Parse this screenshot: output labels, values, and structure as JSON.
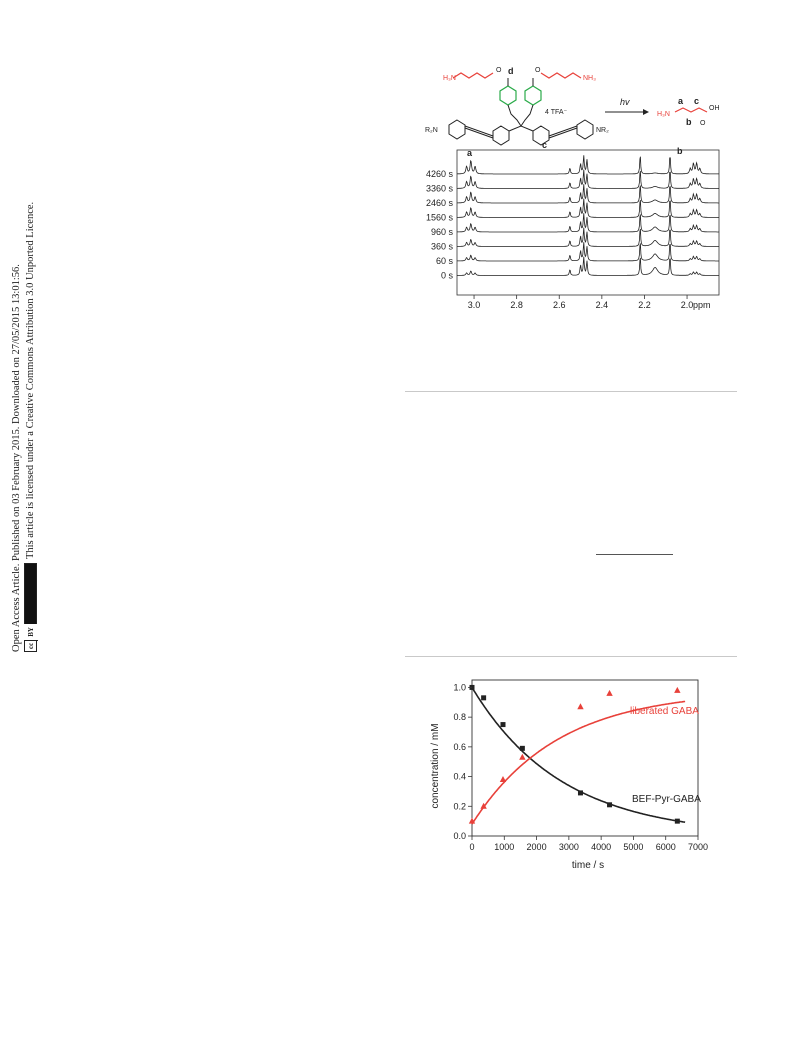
{
  "sidebar": {
    "line1": "Open Access Article. Published on 03 February 2015. Downloaded on 27/05/2015 13:01:56.",
    "line2": "This article is licensed under a Creative Commons Attribution 3.0 Unported Licence.",
    "badge_cc": "cc",
    "badge_by": "BY"
  },
  "scheme": {
    "counter_ion": "4 TFA⁻",
    "arrow_label": "hv",
    "label_a": "a",
    "label_b": "b",
    "label_c": "c",
    "label_d": "d",
    "nr2_left": "R₂N",
    "nr2_right": "NR₂",
    "oh": "OH"
  },
  "nmr": {
    "time_labels": [
      "4260 s",
      "3360 s",
      "2460 s",
      "1560 s",
      "960 s",
      "360 s",
      "60 s",
      "0 s"
    ],
    "ticks": [
      "3.0",
      "2.8",
      "2.6",
      "2.4",
      "2.2",
      "2.0"
    ],
    "unit": "ppm",
    "peak_labels": [
      "a",
      "c",
      "b"
    ]
  },
  "chart_data": {
    "type": "scatter",
    "xlabel": "time / s",
    "ylabel": "concentration / mM",
    "xlim": [
      0,
      7000
    ],
    "ylim": [
      0,
      1.05
    ],
    "xticks": [
      0,
      1000,
      2000,
      3000,
      4000,
      5000,
      6000,
      7000
    ],
    "yticks": [
      0.0,
      0.2,
      0.4,
      0.6,
      0.8,
      1.0
    ],
    "series": [
      {
        "name": "BEF-Pyr-GABA",
        "color": "#222222",
        "marker": "square",
        "x": [
          0,
          360,
          960,
          1560,
          3360,
          4260,
          6360
        ],
        "y": [
          1.0,
          0.93,
          0.75,
          0.59,
          0.29,
          0.21,
          0.1
        ]
      },
      {
        "name": "liberated GABA",
        "color": "#e8413a",
        "marker": "triangle",
        "x": [
          0,
          360,
          960,
          1560,
          3360,
          4260,
          6360
        ],
        "y": [
          0.1,
          0.2,
          0.38,
          0.53,
          0.87,
          0.96,
          0.98
        ]
      }
    ]
  }
}
